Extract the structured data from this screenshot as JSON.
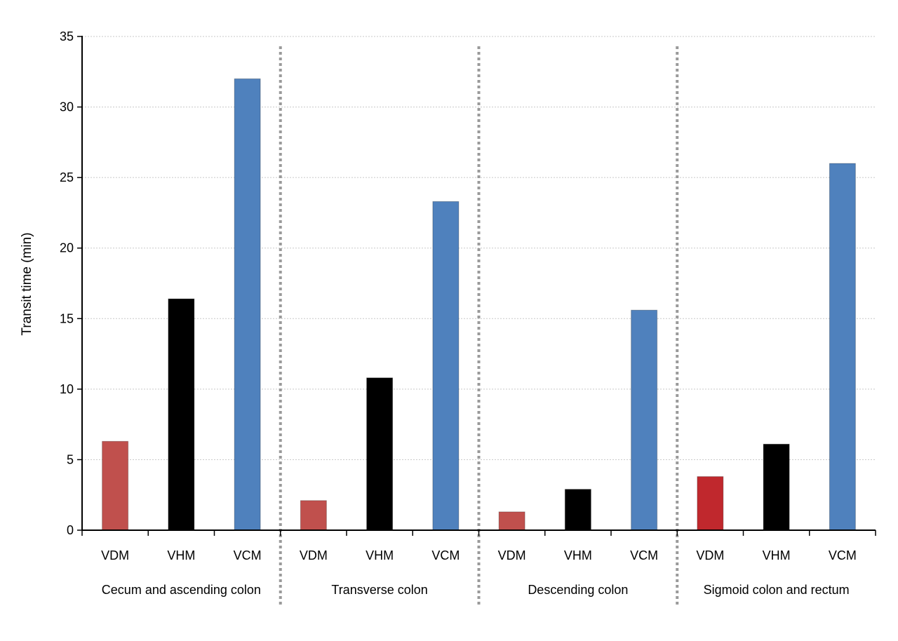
{
  "chart_data": {
    "type": "bar",
    "title": "",
    "xlabel": "",
    "ylabel": "Transit time (min)",
    "ylim": [
      0,
      35
    ],
    "yticks": [
      0,
      5,
      10,
      15,
      20,
      25,
      30,
      35
    ],
    "grid": true,
    "legend": "none",
    "groups": [
      {
        "name": "Cecum and ascending colon",
        "bars": [
          {
            "label": "VDM",
            "value": 6.3,
            "color": "#c0504d"
          },
          {
            "label": "VHM",
            "value": 16.4,
            "color": "#000000"
          },
          {
            "label": "VCM",
            "value": 32.0,
            "color": "#4f81bd"
          }
        ]
      },
      {
        "name": "Transverse colon",
        "bars": [
          {
            "label": "VDM",
            "value": 2.1,
            "color": "#c0504d"
          },
          {
            "label": "VHM",
            "value": 10.8,
            "color": "#000000"
          },
          {
            "label": "VCM",
            "value": 23.3,
            "color": "#4f81bd"
          }
        ]
      },
      {
        "name": "Descending colon",
        "bars": [
          {
            "label": "VDM",
            "value": 1.3,
            "color": "#c0504d"
          },
          {
            "label": "VHM",
            "value": 2.9,
            "color": "#000000"
          },
          {
            "label": "VCM",
            "value": 15.6,
            "color": "#4f81bd"
          }
        ]
      },
      {
        "name": "Sigmoid colon and rectum",
        "bars": [
          {
            "label": "VDM",
            "value": 3.8,
            "color": "#c0282d"
          },
          {
            "label": "VHM",
            "value": 6.1,
            "color": "#000000"
          },
          {
            "label": "VCM",
            "value": 26.0,
            "color": "#4f81bd"
          }
        ]
      }
    ]
  }
}
